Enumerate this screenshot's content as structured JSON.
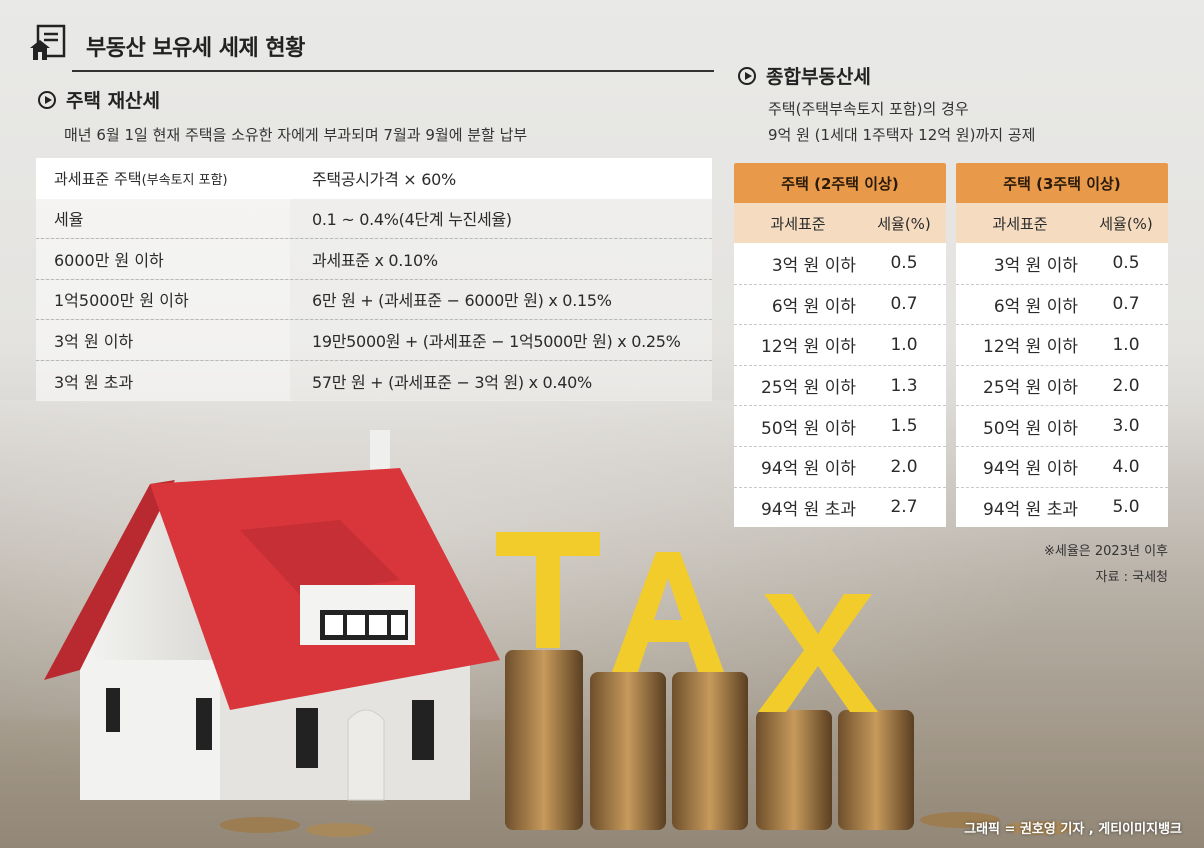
{
  "header": {
    "title": "부동산 보유세 세제 현황",
    "icon": "house-document-icon"
  },
  "property_tax": {
    "title": "주택 재산세",
    "description": "매년 6월 1일 현재 주택을 소유한 자에게 부과되며 7월과 9월에 분할 납부",
    "first_row": {
      "label_main": "과세표준 주택",
      "label_sub": "(부속토지 포함)",
      "value": "주택공시가격 × 60%"
    },
    "rows": [
      {
        "label": "세율",
        "value": "0.1 ~ 0.4%(4단계 누진세율)"
      },
      {
        "label": "6000만 원 이하",
        "value": "과세표준 x 0.10%"
      },
      {
        "label": "1억5000만 원 이하",
        "value": "6만 원 + (과세표준 − 6000만 원) x 0.15%"
      },
      {
        "label": "3억 원 이하",
        "value": "19만5000원 + (과세표준 − 1억5000만 원) x 0.25%"
      },
      {
        "label": "3억 원 초과",
        "value": "57만 원 + (과세표준 − 3억 원) x 0.40%"
      }
    ]
  },
  "comprehensive_tax": {
    "title": "종합부동산세",
    "desc_line1": "주택(주택부속토지 포함)의 경우",
    "desc_line2": "9억 원 (1세대 1주택자 12억 원)까지 공제",
    "tables": [
      {
        "head": "주택 (2주택 이상)",
        "col_a": "과세표준",
        "col_b": "세율(%)",
        "rows": [
          {
            "base": "3억 원 이하",
            "rate": "0.5"
          },
          {
            "base": "6억 원 이하",
            "rate": "0.7"
          },
          {
            "base": "12억 원 이하",
            "rate": "1.0"
          },
          {
            "base": "25억 원 이하",
            "rate": "1.3"
          },
          {
            "base": "50억 원 이하",
            "rate": "1.5"
          },
          {
            "base": "94억 원 이하",
            "rate": "2.0"
          },
          {
            "base": "94억 원 초과",
            "rate": "2.7"
          }
        ]
      },
      {
        "head": "주택 (3주택 이상)",
        "col_a": "과세표준",
        "col_b": "세율(%)",
        "rows": [
          {
            "base": "3억 원 이하",
            "rate": "0.5"
          },
          {
            "base": "6억 원 이하",
            "rate": "0.7"
          },
          {
            "base": "12억 원 이하",
            "rate": "1.0"
          },
          {
            "base": "25억 원 이하",
            "rate": "2.0"
          },
          {
            "base": "50억 원 이하",
            "rate": "3.0"
          },
          {
            "base": "94억 원 이하",
            "rate": "4.0"
          },
          {
            "base": "94억 원 초과",
            "rate": "5.0"
          }
        ]
      }
    ],
    "note": "※세율은 2023년 이후",
    "source": "자료 : 국세청"
  },
  "illustration": {
    "tax_letters": "TAX"
  },
  "credit": "그래픽 = 권호영 기자 , 게티이미지뱅크",
  "colors": {
    "accent_orange": "#e89a4a",
    "sub_header": "#f5dcc0",
    "roof_red": "#d9363c",
    "tax_yellow": "#f2cc2a"
  }
}
